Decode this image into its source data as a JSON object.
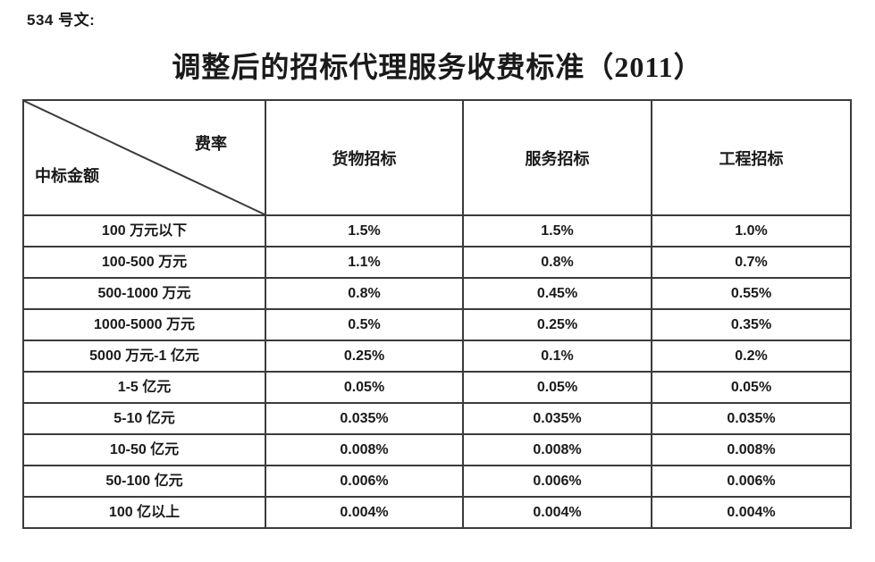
{
  "doc_label": "534 号文:",
  "title": "调整后的招标代理服务收费标准（2011）",
  "table": {
    "corner": {
      "top_right": "费率",
      "bottom_left": "中标金额"
    },
    "columns": [
      "货物招标",
      "服务招标",
      "工程招标"
    ],
    "rows": [
      {
        "amount": "100 万元以下",
        "values": [
          "1.5%",
          "1.5%",
          "1.0%"
        ]
      },
      {
        "amount": "100-500 万元",
        "values": [
          "1.1%",
          "0.8%",
          "0.7%"
        ]
      },
      {
        "amount": "500-1000 万元",
        "values": [
          "0.8%",
          "0.45%",
          "0.55%"
        ]
      },
      {
        "amount": "1000-5000 万元",
        "values": [
          "0.5%",
          "0.25%",
          "0.35%"
        ]
      },
      {
        "amount": "5000 万元-1 亿元",
        "values": [
          "0.25%",
          "0.1%",
          "0.2%"
        ]
      },
      {
        "amount": "1-5 亿元",
        "values": [
          "0.05%",
          "0.05%",
          "0.05%"
        ]
      },
      {
        "amount": "5-10 亿元",
        "values": [
          "0.035%",
          "0.035%",
          "0.035%"
        ]
      },
      {
        "amount": "10-50 亿元",
        "values": [
          "0.008%",
          "0.008%",
          "0.008%"
        ]
      },
      {
        "amount": "50-100 亿元",
        "values": [
          "0.006%",
          "0.006%",
          "0.006%"
        ]
      },
      {
        "amount": "100 亿以上",
        "values": [
          "0.004%",
          "0.004%",
          "0.004%"
        ]
      }
    ],
    "border_color": "#3b3b3b",
    "text_color": "#1a1a1a",
    "background_color": "#ffffff"
  }
}
